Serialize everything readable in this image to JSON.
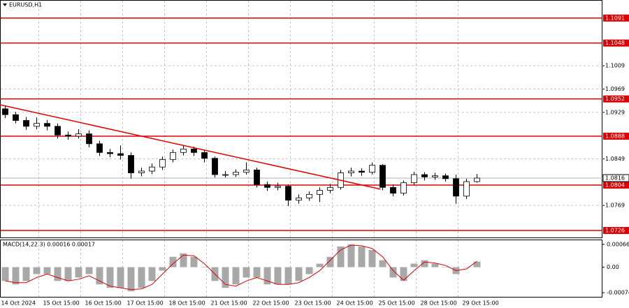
{
  "chart_data": [
    {
      "type": "candlestick",
      "title": "EURUSD,H1",
      "categories": [
        "14 Oct 2024",
        null,
        null,
        null,
        "15 Oct 15:00",
        null,
        null,
        null,
        "16 Oct 15:00",
        null,
        null,
        null,
        "17 Oct 15:00",
        null,
        null,
        null,
        "18 Oct 15:00",
        null,
        null,
        null,
        "21 Oct 15:00",
        null,
        null,
        null,
        "22 Oct 15:00",
        null,
        null,
        null,
        "23 Oct 15:00",
        null,
        null,
        null,
        "24 Oct 15:00",
        null,
        null,
        null,
        "25 Oct 15:00",
        null,
        null,
        null,
        "28 Oct 15:00",
        null,
        null,
        null,
        "29 Oct 15:00",
        null
      ],
      "open": [
        1.0935,
        1.0925,
        1.0915,
        1.0905,
        1.091,
        1.0905,
        1.089,
        1.0888,
        1.0892,
        1.0875,
        1.086,
        1.0858,
        1.0855,
        1.0825,
        1.0828,
        1.0835,
        1.0848,
        1.086,
        1.0866,
        1.086,
        1.085,
        1.0822,
        1.0822,
        1.0826,
        1.083,
        1.0805,
        1.08,
        1.0802,
        1.0778,
        1.0782,
        1.0788,
        1.0795,
        1.08,
        1.0825,
        1.0828,
        1.0826,
        1.0838,
        1.08,
        1.079,
        1.0808,
        1.0822,
        1.0818,
        1.082,
        1.0815,
        1.0785,
        1.081
      ],
      "high": [
        1.0941,
        1.093,
        1.0921,
        1.092,
        1.0916,
        1.091,
        1.0896,
        1.09,
        1.0898,
        1.088,
        1.0866,
        1.0872,
        1.086,
        1.0834,
        1.0841,
        1.0853,
        1.0865,
        1.0872,
        1.087,
        1.0864,
        1.0853,
        1.0828,
        1.0831,
        1.0843,
        1.0834,
        1.081,
        1.0808,
        1.0805,
        1.0788,
        1.0793,
        1.08,
        1.0806,
        1.083,
        1.0834,
        1.0833,
        1.0843,
        1.084,
        1.0805,
        1.0812,
        1.0827,
        1.0826,
        1.0825,
        1.0824,
        1.0822,
        1.0815,
        1.0823
      ],
      "low": [
        1.0919,
        1.091,
        1.0899,
        1.09,
        1.0898,
        1.0884,
        1.0882,
        1.0884,
        1.0869,
        1.0854,
        1.0852,
        1.0848,
        1.0815,
        1.0819,
        1.0823,
        1.083,
        1.0843,
        1.0855,
        1.0854,
        1.0843,
        1.0817,
        1.0817,
        1.0818,
        1.0822,
        1.08,
        1.0794,
        1.0795,
        1.0768,
        1.0772,
        1.0777,
        1.0775,
        1.079,
        1.0796,
        1.0819,
        1.082,
        1.0822,
        1.0795,
        1.0785,
        1.0786,
        1.0804,
        1.0812,
        1.0813,
        1.081,
        1.0772,
        1.078,
        1.0808
      ],
      "close": [
        1.0925,
        1.0915,
        1.0905,
        1.091,
        1.0905,
        1.089,
        1.0888,
        1.0892,
        1.0875,
        1.086,
        1.0858,
        1.0855,
        1.0825,
        1.0828,
        1.0835,
        1.0848,
        1.086,
        1.0866,
        1.086,
        1.085,
        1.0822,
        1.0822,
        1.0826,
        1.083,
        1.0805,
        1.08,
        1.0802,
        1.0778,
        1.0782,
        1.0788,
        1.0795,
        1.08,
        1.0825,
        1.0828,
        1.0826,
        1.0838,
        1.08,
        1.079,
        1.0808,
        1.0822,
        1.0818,
        1.082,
        1.0815,
        1.0785,
        1.081,
        1.0816
      ],
      "ylim": [
        1.0714,
        1.1122
      ],
      "yticks": [
        1.1009,
        1.0969,
        1.0929,
        1.0849,
        1.0769
      ],
      "levels": [
        1.1091,
        1.1048,
        1.0952,
        1.0888,
        1.0804,
        1.0726
      ],
      "level_color": "#e00000",
      "current_price": 1.0816,
      "trendline": {
        "x": [
          -0.5,
          35.8
        ],
        "y": [
          1.0942,
          1.0797
        ],
        "color": "#e00000"
      },
      "grid": true
    },
    {
      "type": "macd",
      "title": "MACD(14,22,3) 0.00016 0.00017",
      "values": [
        -0.0004,
        -0.0005,
        -0.0004,
        -0.0002,
        -0.0002,
        -0.0004,
        -0.0004,
        -0.0003,
        -0.0002,
        -0.0005,
        -0.0006,
        -0.0006,
        -0.0007,
        -0.0006,
        -0.0004,
        -0.0001,
        0.0003,
        0.0004,
        0.0003,
        0.0,
        -0.0004,
        -0.0006,
        -0.0005,
        -0.0003,
        -0.0003,
        -0.0005,
        -0.0005,
        -0.0005,
        -0.0004,
        -0.0002,
        0.0001,
        0.0003,
        0.0006,
        0.00066,
        0.0006,
        0.0005,
        0.0002,
        -0.0003,
        -0.0004,
        0.0001,
        0.0002,
        0.0001,
        0.0,
        -0.0002,
        0.0,
        0.00016
      ],
      "signal": [
        -0.0004,
        -0.00045,
        -0.00045,
        -0.0003,
        -0.0002,
        -0.0003,
        -0.0004,
        -0.00035,
        -0.00025,
        -0.0004,
        -0.00055,
        -0.0006,
        -0.00065,
        -0.00063,
        -0.0005,
        -0.0002,
        0.0001,
        0.00035,
        0.00033,
        0.0001,
        -0.0002,
        -0.0005,
        -0.00055,
        -0.0004,
        -0.0003,
        -0.0004,
        -0.0005,
        -0.0005,
        -0.00045,
        -0.0003,
        -0.0001,
        0.0002,
        0.0005,
        0.00064,
        0.00062,
        0.00054,
        0.0003,
        -0.0001,
        -0.00038,
        -0.0001,
        0.00015,
        0.00012,
        5e-05,
        -0.0001,
        -5e-05,
        0.00017
      ],
      "color": "#a8a8a8",
      "signal_color": "#e00000",
      "ylim": [
        -0.00086,
        0.00078
      ],
      "yticks": [
        0.00066,
        {
          "value": 0,
          "label": "0.00"
        },
        -0.00074
      ]
    }
  ]
}
